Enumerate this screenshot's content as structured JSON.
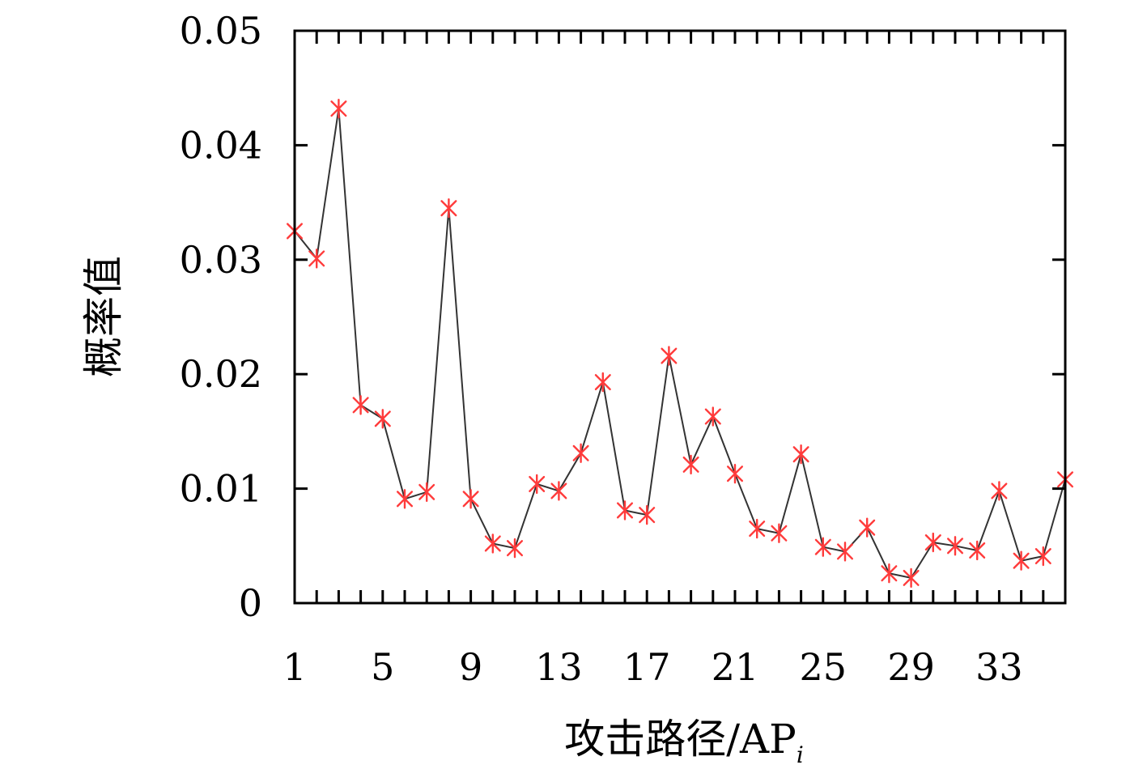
{
  "chart_data": {
    "type": "line",
    "title": "",
    "xlabel": "攻击路径/AP",
    "xlabel_subscript": "i",
    "ylabel": "概率值",
    "xlim": [
      1,
      36
    ],
    "ylim": [
      0,
      0.05
    ],
    "grid": false,
    "legend": "none",
    "x_ticks": [
      1,
      5,
      9,
      13,
      17,
      21,
      25,
      29,
      33
    ],
    "x_tick_labels": [
      "1",
      "5",
      "9",
      "13",
      "17",
      "21",
      "25",
      "29",
      "33"
    ],
    "y_ticks": [
      0,
      0.01,
      0.02,
      0.03,
      0.04,
      0.05
    ],
    "y_tick_labels": [
      "0",
      "0.01",
      "0.02",
      "0.03",
      "0.04",
      "0.05"
    ],
    "series": [
      {
        "line_color": "#333333",
        "marker": "asterisk",
        "marker_color": "#ff3b3b",
        "x": [
          1,
          2,
          3,
          4,
          5,
          6,
          7,
          8,
          9,
          10,
          11,
          12,
          13,
          14,
          15,
          16,
          17,
          18,
          19,
          20,
          21,
          22,
          23,
          24,
          25,
          26,
          27,
          28,
          29,
          30,
          31,
          32,
          33,
          34,
          35,
          36
        ],
        "values": [
          0.0325,
          0.0301,
          0.0432,
          0.0173,
          0.0161,
          0.0091,
          0.0097,
          0.0345,
          0.0091,
          0.0052,
          0.0048,
          0.0104,
          0.0098,
          0.0131,
          0.0193,
          0.0081,
          0.0077,
          0.0216,
          0.0121,
          0.0163,
          0.0113,
          0.0065,
          0.0061,
          0.013,
          0.0049,
          0.0045,
          0.0066,
          0.0026,
          0.0022,
          0.0053,
          0.005,
          0.0046,
          0.0098,
          0.0037,
          0.0041,
          0.0108
        ]
      }
    ]
  }
}
